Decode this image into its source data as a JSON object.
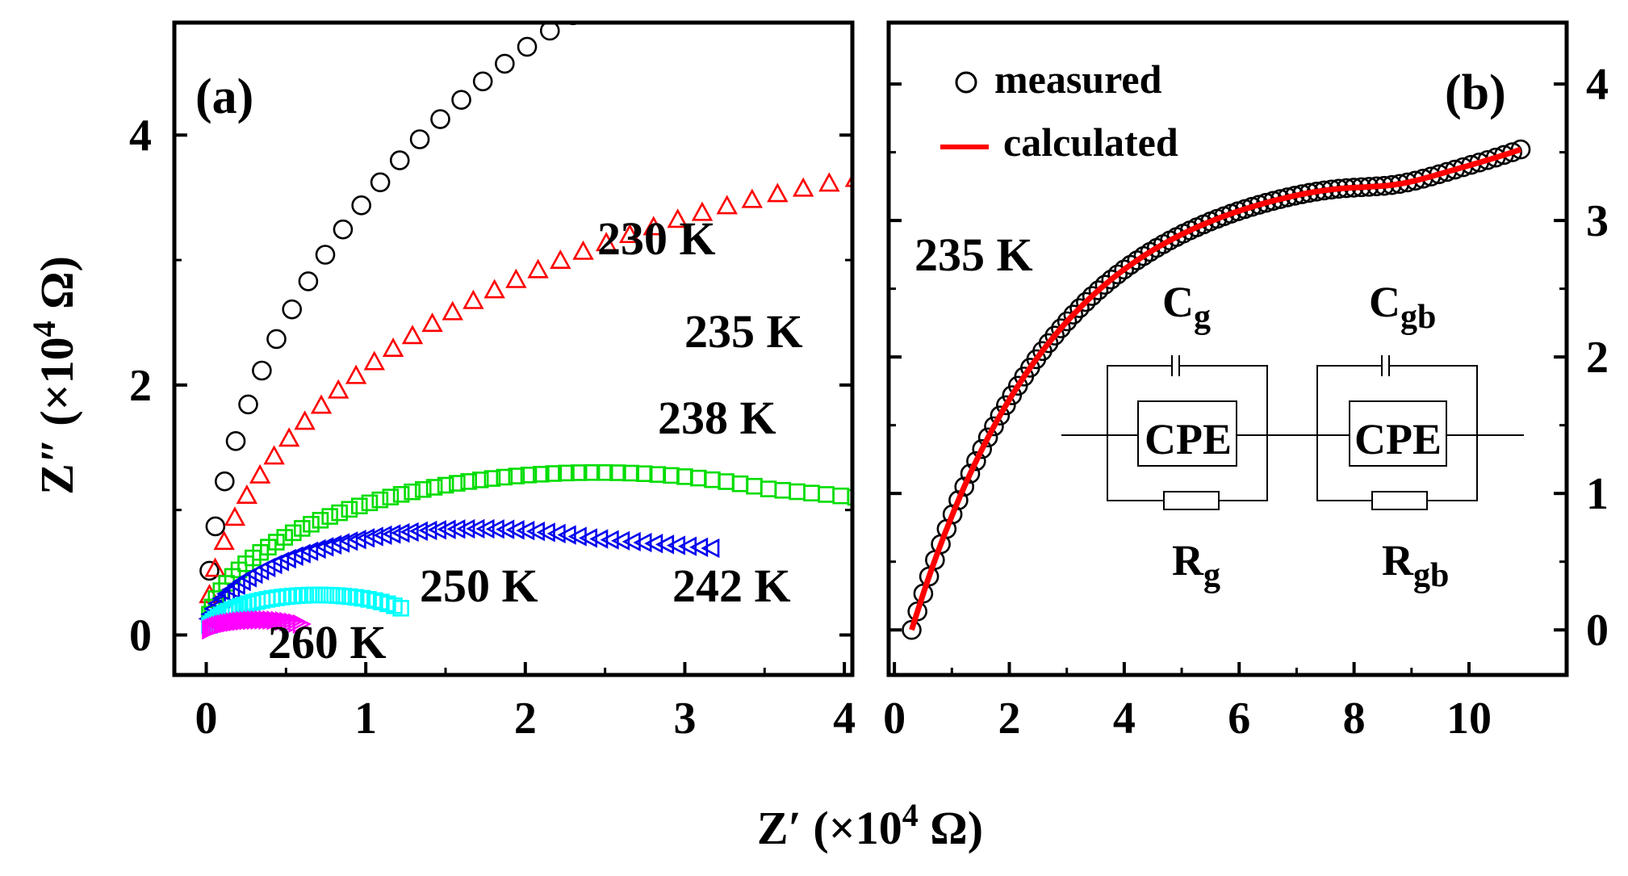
{
  "xlabel_main": "Z′ (×10",
  "xlabel_exp": "4",
  "xlabel_end": " Ω)",
  "chart_data": [
    {
      "id": "a",
      "type": "scatter",
      "panel_label": "(a)",
      "ylabel_main": "Z″ (×10",
      "ylabel_exp": "4",
      "ylabel_end": " Ω)",
      "xlim": [
        -0.2,
        4.05
      ],
      "ylim": [
        -0.32,
        4.9
      ],
      "xticks": [
        0,
        1,
        2,
        3,
        4
      ],
      "yticks": [
        0,
        2,
        4
      ],
      "series": [
        {
          "name": "230 K",
          "marker": "circle",
          "color": "#000000",
          "n": 28,
          "xend": 3.2,
          "peakx": 6.0,
          "peaky": 6.3,
          "tail": 0.0,
          "shape": 0.5
        },
        {
          "name": "235 K",
          "marker": "triangle",
          "color": "#ff0000",
          "n": 34,
          "xend": 4.05,
          "peakx": 6.0,
          "peaky": 3.85,
          "tail": 0.0,
          "shape": 0.5
        },
        {
          "name": "238 K",
          "marker": "square",
          "color": "#00dd00",
          "n": 60,
          "xend": 4.05,
          "peakx": 2.45,
          "peaky": 1.3,
          "tail": 0.2,
          "shape": 0.5
        },
        {
          "name": "242 K",
          "marker": "triangle-left",
          "color": "#0000ee",
          "n": 60,
          "xend": 3.15,
          "peakx": 1.7,
          "peaky": 0.85,
          "tail": 0.12,
          "shape": 0.5
        },
        {
          "name": "250 K",
          "marker": "square",
          "color": "#00ffff",
          "n": 40,
          "xend": 1.2,
          "peakx": 0.7,
          "peaky": 0.32,
          "tail": 0.12,
          "shape": 0.5
        },
        {
          "name": "260 K",
          "marker": "triangle-right",
          "color": "#ff00ff",
          "n": 28,
          "xend": 0.57,
          "peakx": 0.35,
          "peaky": 0.12,
          "tail": 0.04,
          "shape": 0.5
        }
      ]
    },
    {
      "id": "b",
      "type": "line+scatter",
      "panel_label": "(b)",
      "temperature_label": "235 K",
      "xlim": [
        -0.1,
        11.7
      ],
      "ylim": [
        -0.33,
        4.45
      ],
      "xticks": [
        0,
        2,
        4,
        6,
        8,
        10
      ],
      "yticks": [
        0,
        1,
        2,
        3,
        4
      ],
      "legend": [
        {
          "name": "measured",
          "marker": "circle",
          "color": "#000000"
        },
        {
          "name": "calculated",
          "marker": "line",
          "color": "#ff0000"
        }
      ],
      "series": [
        {
          "name": "measured",
          "x0": 0.3,
          "xend": 10.9,
          "n": 90,
          "plateau": 3.42,
          "k": 0.4,
          "tailrise": 0.15
        },
        {
          "name": "calculated",
          "x0": 0.3,
          "xend": 10.9,
          "n": 200,
          "plateau": 3.42,
          "k": 0.4,
          "tailrise": 0.15
        }
      ],
      "circuit": {
        "elements": [
          {
            "name": "C",
            "sub": "g"
          },
          {
            "name": "CPE",
            "sub": ""
          },
          {
            "name": "R",
            "sub": "g"
          },
          {
            "name": "C",
            "sub": "gb"
          },
          {
            "name": "CPE",
            "sub": ""
          },
          {
            "name": "R",
            "sub": "gb"
          }
        ]
      }
    }
  ]
}
